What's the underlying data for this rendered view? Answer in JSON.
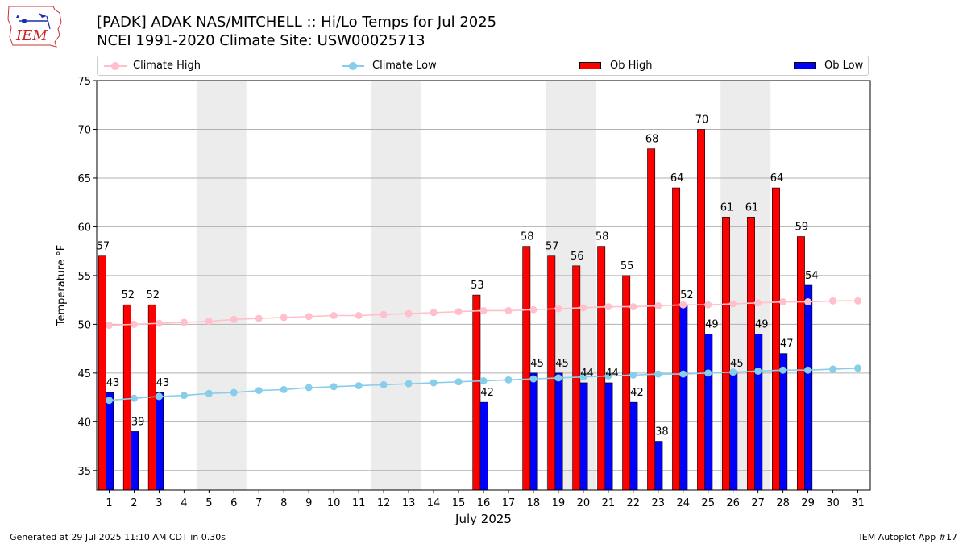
{
  "header": {
    "title_line1": "[PADK] ADAK NAS/MITCHELL :: Hi/Lo Temps for Jul 2025",
    "title_line2": "NCEI 1991-2020 Climate Site: USW00025713",
    "logo_text": "IEM"
  },
  "legend": {
    "climate_high": "Climate High",
    "climate_low": "Climate Low",
    "ob_high": "Ob High",
    "ob_low": "Ob Low"
  },
  "footer": {
    "left": "Generated at 29 Jul 2025 11:10 AM CDT in 0.30s",
    "right": "IEM Autoplot App #17"
  },
  "colors": {
    "ob_high": "#ff0000",
    "ob_low": "#0000ff",
    "climate_high": "#ffc0cb",
    "climate_low": "#87ceeb",
    "weekend_shade": "#ececec",
    "grid": "#b0b0b0"
  },
  "chart_data": {
    "type": "bar",
    "xlabel": "July 2025",
    "ylabel": "Temperature °F",
    "ylim": [
      33,
      75
    ],
    "yticks": [
      35,
      40,
      45,
      50,
      55,
      60,
      65,
      70,
      75
    ],
    "grid": "horizontal",
    "legend_position": "top",
    "days": [
      1,
      2,
      3,
      4,
      5,
      6,
      7,
      8,
      9,
      10,
      11,
      12,
      13,
      14,
      15,
      16,
      17,
      18,
      19,
      20,
      21,
      22,
      23,
      24,
      25,
      26,
      27,
      28,
      29,
      30,
      31
    ],
    "shaded_days": [
      [
        5,
        6
      ],
      [
        12,
        13
      ],
      [
        19,
        20
      ],
      [
        26,
        27
      ]
    ],
    "series": [
      {
        "name": "Ob High",
        "kind": "bar",
        "values": [
          57,
          52,
          52,
          null,
          null,
          null,
          null,
          null,
          null,
          null,
          null,
          null,
          null,
          null,
          null,
          53,
          null,
          58,
          57,
          56,
          58,
          55,
          68,
          64,
          70,
          61,
          61,
          64,
          59,
          null,
          null
        ]
      },
      {
        "name": "Ob Low",
        "kind": "bar",
        "values": [
          43,
          39,
          43,
          null,
          null,
          null,
          null,
          null,
          null,
          null,
          null,
          null,
          null,
          null,
          null,
          42,
          null,
          45,
          45,
          44,
          44,
          42,
          38,
          52,
          49,
          45,
          49,
          47,
          54,
          null,
          null
        ]
      },
      {
        "name": "Climate High",
        "kind": "line",
        "values": [
          49.9,
          50.0,
          50.1,
          50.2,
          50.3,
          50.5,
          50.6,
          50.7,
          50.8,
          50.9,
          50.9,
          51.0,
          51.1,
          51.2,
          51.3,
          51.4,
          51.4,
          51.5,
          51.6,
          51.7,
          51.8,
          51.8,
          51.9,
          52.0,
          52.0,
          52.1,
          52.2,
          52.3,
          52.3,
          52.4,
          52.4
        ]
      },
      {
        "name": "Climate Low",
        "kind": "line",
        "values": [
          42.2,
          42.4,
          42.6,
          42.7,
          42.9,
          43.0,
          43.2,
          43.3,
          43.5,
          43.6,
          43.7,
          43.8,
          43.9,
          44.0,
          44.1,
          44.2,
          44.3,
          44.4,
          44.5,
          44.6,
          44.7,
          44.8,
          44.9,
          44.9,
          45.0,
          45.1,
          45.2,
          45.3,
          45.3,
          45.4,
          45.5
        ]
      }
    ]
  }
}
